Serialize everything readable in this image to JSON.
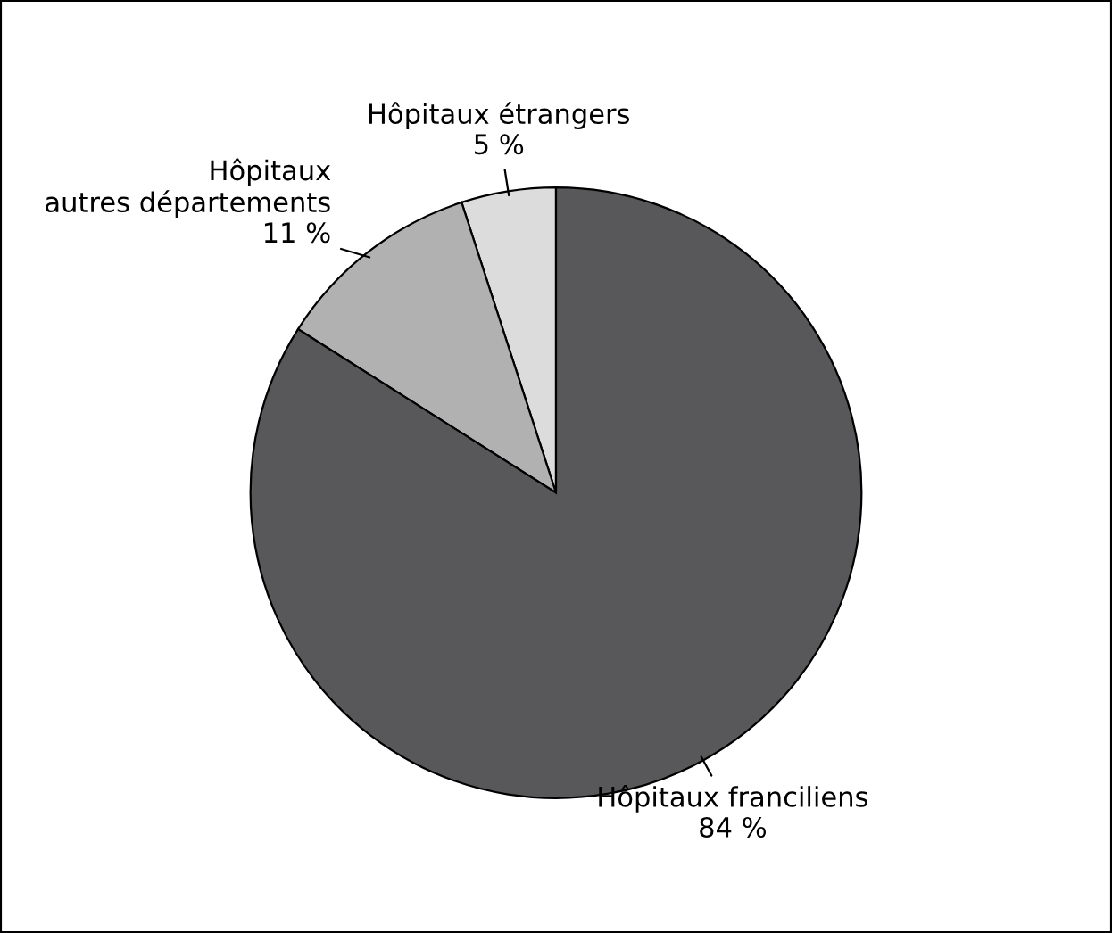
{
  "chart_data": {
    "type": "pie",
    "categories": [
      "Hôpitaux étrangers",
      "Hôpitaux\nautres départements",
      "Hôpitaux franciliens"
    ],
    "values": [
      5,
      11,
      84
    ],
    "value_labels": [
      "5 %",
      "11 %",
      "84 %"
    ],
    "colors": [
      "#dcdcdc",
      "#b1b1b1",
      "#58585a"
    ],
    "legend": false
  }
}
